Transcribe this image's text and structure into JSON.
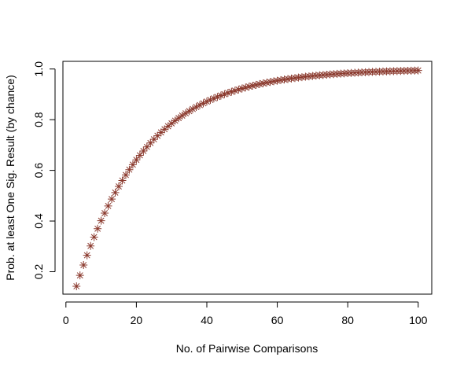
{
  "chart_data": {
    "type": "scatter",
    "title": "",
    "xlabel": "No. of Pairwise Comparisons",
    "ylabel": "Prob. at least One Sig. Result (by chance)",
    "xlim": [
      -0.85,
      103.85
    ],
    "ylim": [
      0.1115,
      1.0302
    ],
    "x_ticks": [
      0,
      20,
      40,
      60,
      80,
      100
    ],
    "x_tick_labels": [
      "0",
      "20",
      "40",
      "60",
      "80",
      "100"
    ],
    "y_ticks": [
      0.2,
      0.4,
      0.6,
      0.8,
      1.0
    ],
    "y_tick_labels": [
      "0.2",
      "0.4",
      "0.6",
      "0.8",
      "1.0"
    ],
    "grid": false,
    "legend": "none",
    "marker": "asterisk",
    "marker_color": "#8b3a2e",
    "series": [
      {
        "x": [
          3,
          4,
          5,
          6,
          7,
          8,
          9,
          10,
          11,
          12,
          13,
          14,
          15,
          16,
          17,
          18,
          19,
          20,
          21,
          22,
          23,
          24,
          25,
          26,
          27,
          28,
          29,
          30,
          31,
          32,
          33,
          34,
          35,
          36,
          37,
          38,
          39,
          40,
          41,
          42,
          43,
          44,
          45,
          46,
          47,
          48,
          49,
          50,
          51,
          52,
          53,
          54,
          55,
          56,
          57,
          58,
          59,
          60,
          61,
          62,
          63,
          64,
          65,
          66,
          67,
          68,
          69,
          70,
          71,
          72,
          73,
          74,
          75,
          76,
          77,
          78,
          79,
          80,
          81,
          82,
          83,
          84,
          85,
          86,
          87,
          88,
          89,
          90,
          91,
          92,
          93,
          94,
          95,
          96,
          97,
          98,
          99,
          100
        ],
        "y": [
          0.1426,
          0.1855,
          0.2262,
          0.2649,
          0.3017,
          0.3366,
          0.3698,
          0.4013,
          0.4312,
          0.4596,
          0.4867,
          0.5123,
          0.5367,
          0.5599,
          0.5819,
          0.6028,
          0.6226,
          0.6415,
          0.6594,
          0.6765,
          0.6926,
          0.708,
          0.7226,
          0.7365,
          0.7497,
          0.7622,
          0.7741,
          0.7854,
          0.7961,
          0.8063,
          0.816,
          0.8252,
          0.8339,
          0.8422,
          0.8501,
          0.8576,
          0.8647,
          0.8715,
          0.8779,
          0.884,
          0.8898,
          0.8953,
          0.9006,
          0.9055,
          0.9103,
          0.9147,
          0.919,
          0.9231,
          0.9269,
          0.9306,
          0.934,
          0.9373,
          0.9405,
          0.9434,
          0.9463,
          0.9489,
          0.9515,
          0.9539,
          0.9562,
          0.9584,
          0.9605,
          0.9625,
          0.9644,
          0.9662,
          0.9679,
          0.9695,
          0.971,
          0.9724,
          0.9738,
          0.9751,
          0.9764,
          0.9776,
          0.9787,
          0.9798,
          0.9808,
          0.9817,
          0.9826,
          0.9835,
          0.9843,
          0.9851,
          0.9859,
          0.9866,
          0.9872,
          0.9879,
          0.9885,
          0.989,
          0.9896,
          0.9901,
          0.9906,
          0.9911,
          0.9915,
          0.9919,
          0.9923,
          0.9927,
          0.9931,
          0.9934,
          0.9937,
          0.9941
        ]
      }
    ]
  }
}
